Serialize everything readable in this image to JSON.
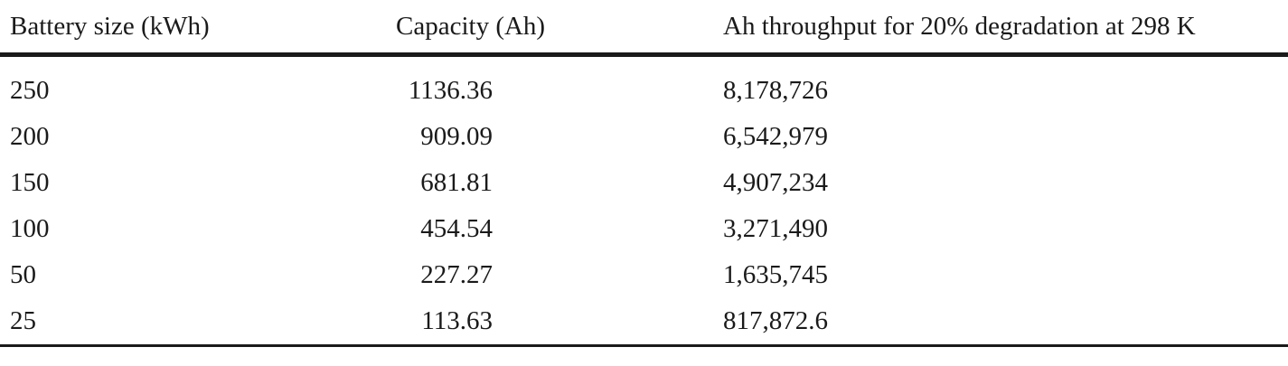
{
  "table": {
    "headers": [
      "Battery size (kWh)",
      "Capacity (Ah)",
      "Ah throughput for 20% degradation at 298 K"
    ],
    "rows": [
      [
        "250",
        "1136.36",
        "8,178,726"
      ],
      [
        "200",
        "909.09",
        "6,542,979"
      ],
      [
        "150",
        "681.81",
        "4,907,234"
      ],
      [
        "100",
        "454.54",
        "3,271,490"
      ],
      [
        "50",
        "227.27",
        "1,635,745"
      ],
      [
        "25",
        "113.63",
        "817,872.6"
      ]
    ]
  }
}
